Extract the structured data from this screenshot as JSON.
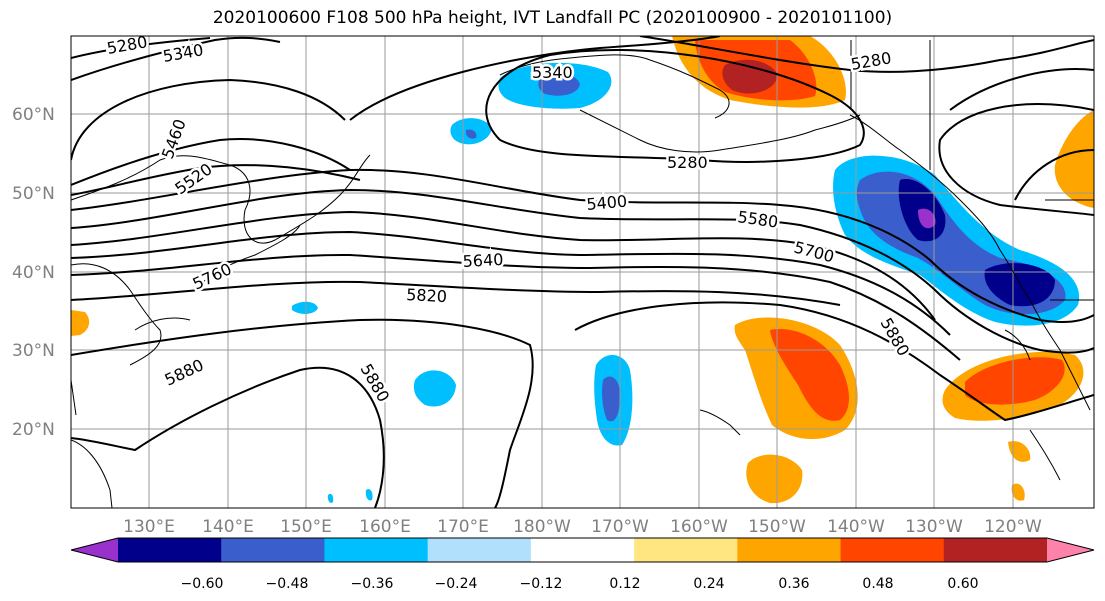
{
  "title": "2020100600 F108 500 hPa height, IVT Landfall PC (2020100900 - 2020101100)",
  "lat_labels": [
    "60°N",
    "50°N",
    "40°N",
    "30°N",
    "20°N"
  ],
  "lon_labels": [
    "130°E",
    "140°E",
    "150°E",
    "160°E",
    "170°E",
    "180°W",
    "170°W",
    "160°W",
    "150°W",
    "140°W",
    "130°W",
    "120°W"
  ],
  "contour_labels": [
    "5280",
    "5340",
    "5340",
    "5460",
    "5520",
    "5280",
    "5280",
    "5400",
    "5580",
    "5700",
    "5640",
    "5760",
    "5820",
    "5880",
    "5880",
    "5880"
  ],
  "colorbar": {
    "ticks": [
      "−0.60",
      "−0.48",
      "−0.36",
      "−0.24",
      "−0.12",
      "0.12",
      "0.24",
      "0.36",
      "0.48",
      "0.60"
    ],
    "colors": [
      "#9932cc",
      "#00008b",
      "#3a5fcd",
      "#00bfff",
      "#b0e0fb",
      "#ffffff",
      "#ffe680",
      "#ffa500",
      "#ff4500",
      "#b22222",
      "#ff82ab"
    ]
  }
}
